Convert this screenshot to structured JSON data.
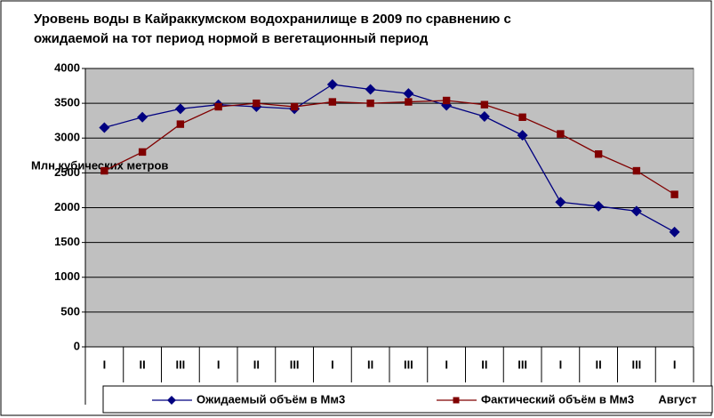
{
  "chart_data": {
    "type": "line",
    "title": [
      "Уровень воды в Кайраккумском водохранилище в 2009 по сравнению с",
      "ожидаемой на тот период нормой в вегетационный период"
    ],
    "y_label": "Млн кубических метров",
    "categories": [
      "I",
      "II",
      "III",
      "I",
      "II",
      "III",
      "I",
      "II",
      "III",
      "I",
      "II",
      "III",
      "I",
      "II",
      "III",
      "I"
    ],
    "group_labels": [
      "Август"
    ],
    "series": [
      {
        "name": "Ожидаемый объём в Мм3",
        "color": "#000080",
        "marker": "diamond",
        "values": [
          3150,
          3300,
          3420,
          3480,
          3450,
          3420,
          3770,
          3700,
          3640,
          3470,
          3310,
          3040,
          2080,
          2020,
          1950,
          1650
        ]
      },
      {
        "name": "Фактический объём в Мм3",
        "color": "#800000",
        "marker": "square",
        "values": [
          2530,
          2800,
          3200,
          3450,
          3500,
          3450,
          3520,
          3500,
          3520,
          3540,
          3480,
          3300,
          3060,
          2770,
          2530,
          2190
        ]
      }
    ],
    "ylim": [
      0,
      4000
    ],
    "yticks": [
      0,
      500,
      1000,
      1500,
      2000,
      2500,
      3000,
      3500,
      4000
    ],
    "grid": true
  }
}
